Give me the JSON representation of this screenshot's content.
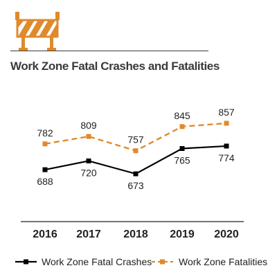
{
  "title": "Work Zone Fatal Crashes and Fatalities",
  "icon": "road-barricade-icon",
  "colors": {
    "fatalities": "#e08a2c",
    "crashes": "#000000",
    "icon": "#e08a2c",
    "text": "#222222"
  },
  "chart_data": {
    "type": "line",
    "title": "Work Zone Fatal Crashes and Fatalities",
    "x": [
      "2016",
      "2017",
      "2018",
      "2019",
      "2020"
    ],
    "series": [
      {
        "name": "Work Zone Fatal Crashes",
        "values": [
          688,
          720,
          673,
          765,
          774
        ],
        "color": "#000000",
        "style": "solid"
      },
      {
        "name": "Work Zone Fatalities",
        "values": [
          782,
          809,
          757,
          845,
          857
        ],
        "color": "#e08a2c",
        "style": "dashed"
      }
    ],
    "legend": "bottom",
    "grid": false
  }
}
